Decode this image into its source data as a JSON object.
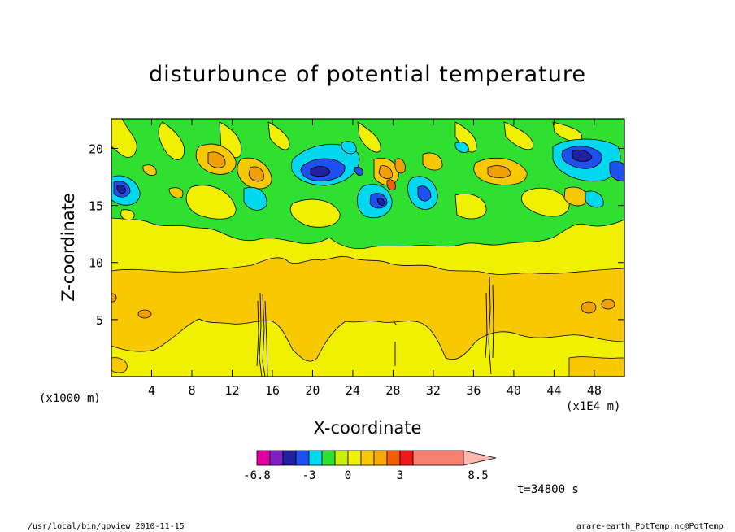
{
  "chart_data": {
    "type": "heatmap",
    "title": "disturbunce of potential temperature",
    "xlabel": "X-coordinate",
    "ylabel": "Z-coordinate",
    "x_unit_label": "(x1000 m)",
    "x_scale_label": "(x1E4 m)",
    "x_ticks": [
      4,
      8,
      12,
      16,
      20,
      24,
      28,
      32,
      36,
      40,
      44,
      48
    ],
    "y_ticks": [
      5,
      10,
      15,
      20
    ],
    "xlim": [
      0,
      51
    ],
    "ylim": [
      0,
      22.6
    ],
    "colorbar": {
      "labels": [
        "-6.8",
        "-3",
        "0",
        "3",
        "8.5"
      ],
      "colors": [
        "#e000a0",
        "#8020c0",
        "#2020a0",
        "#1e50f0",
        "#00d8f0",
        "#30e030",
        "#c8f000",
        "#f0f000",
        "#f8c800",
        "#f8a800",
        "#f06000",
        "#f01818",
        "#f88070",
        "#ffb8b0"
      ]
    },
    "time_label": "t=34800 s"
  },
  "footer": {
    "left": "/usr/local/bin/gpview  2010-11-15",
    "right": "arare-earth_PotTemp.nc@PotTemp"
  },
  "colors": {
    "yellow": "#f0f000",
    "orange": "#f8c800",
    "darkorange": "#f0a000",
    "green": "#30e030",
    "cyan": "#00d8f0",
    "blue": "#1e50f0",
    "navy": "#2020a0"
  }
}
